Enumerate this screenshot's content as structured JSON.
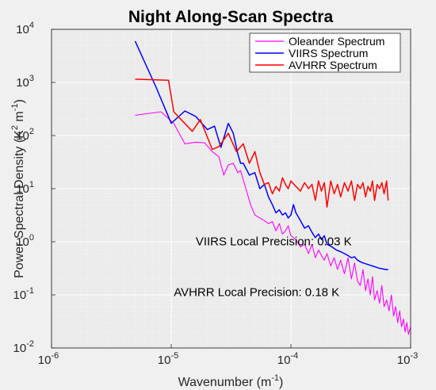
{
  "chart_data": {
    "type": "line",
    "title": "Night Along-Scan Spectra",
    "xlabel": {
      "base": "Wavenumber (m",
      "sup": "-1",
      "tail": ")"
    },
    "ylabel": {
      "p1": "Power Spectral Density (K",
      "s1": "2",
      "p2": " m",
      "s2": "-1",
      "p3": ")"
    },
    "x_scale": "log",
    "y_scale": "log",
    "xlim": [
      1e-06,
      0.001
    ],
    "ylim": [
      0.01,
      10000.0
    ],
    "grid": true,
    "minor_grid": true,
    "legend_position": "top-right",
    "x_ticks": [
      {
        "value": 1e-06,
        "base": "10",
        "exp": "-6"
      },
      {
        "value": 1e-05,
        "base": "10",
        "exp": "-5"
      },
      {
        "value": 0.0001,
        "base": "10",
        "exp": "-4"
      },
      {
        "value": 0.001,
        "base": "10",
        "exp": "-3"
      }
    ],
    "y_ticks": [
      {
        "value": 0.01,
        "base": "10",
        "exp": "-2"
      },
      {
        "value": 0.1,
        "base": "10",
        "exp": "-1"
      },
      {
        "value": 1.0,
        "base": "10",
        "exp": "0"
      },
      {
        "value": 10.0,
        "base": "10",
        "exp": "1"
      },
      {
        "value": 100.0,
        "base": "10",
        "exp": "2"
      },
      {
        "value": 1000.0,
        "base": "10",
        "exp": "3"
      },
      {
        "value": 10000.0,
        "base": "10",
        "exp": "4"
      }
    ],
    "annotations": [
      {
        "text": "VIIRS Local Precision: 0.03 K",
        "x": 1.6e-05,
        "y": 0.85
      },
      {
        "text": "AVHRR Local Precision: 0.18 K",
        "x": 1.05e-05,
        "y": 0.095
      }
    ],
    "series": [
      {
        "name": "Oleander Spectrum",
        "color": "#ff00ff",
        "x": [
          5e-06,
          8.2e-06,
          1.05e-05,
          1.3e-05,
          1.6e-05,
          1.9e-05,
          2.2e-05,
          2.5e-05,
          2.75e-05,
          3e-05,
          3.3e-05,
          3.6e-05,
          3.8e-05,
          4.2e-05,
          4.6e-05,
          5e-05,
          5.5e-05,
          6e-05,
          6.5e-05,
          7e-05,
          7.5e-05,
          8e-05,
          8.5e-05,
          9e-05,
          9.5e-05,
          0.0001,
          0.00011,
          0.00012,
          0.00013,
          0.00014,
          0.00015,
          0.00016,
          0.00017,
          0.00018,
          0.00019,
          0.0002,
          0.000215,
          0.00023,
          0.000245,
          0.00026,
          0.00028,
          0.0003,
          0.00032,
          0.00034,
          0.00036,
          0.00038,
          0.0004,
          0.00042,
          0.00044,
          0.00046,
          0.00048,
          0.0005,
          0.000525,
          0.00055,
          0.000575,
          0.0006,
          0.00063,
          0.00066,
          0.00069,
          0.00072,
          0.00075,
          0.00078,
          0.00081,
          0.00084,
          0.00087,
          0.0009,
          0.00093,
          0.00096,
          0.001
        ],
        "y": [
          240,
          280,
          170,
          70,
          75,
          73,
          50,
          40,
          18,
          28,
          30,
          20,
          22,
          10,
          5,
          3.2,
          2.8,
          2.5,
          2.2,
          2.4,
          1.6,
          2.2,
          1.4,
          1.6,
          2.0,
          1.3,
          1.1,
          0.8,
          0.9,
          0.6,
          0.9,
          0.5,
          0.7,
          0.55,
          0.45,
          0.6,
          0.35,
          0.5,
          0.3,
          0.45,
          0.25,
          0.5,
          0.2,
          0.4,
          0.18,
          0.15,
          0.3,
          0.12,
          0.2,
          0.1,
          0.22,
          0.08,
          0.12,
          0.07,
          0.15,
          0.06,
          0.08,
          0.05,
          0.1,
          0.04,
          0.06,
          0.03,
          0.05,
          0.025,
          0.035,
          0.02,
          0.03,
          0.018,
          0.025
        ]
      },
      {
        "name": "VIIRS Spectrum",
        "color": "#0000ff",
        "x": [
          5e-06,
          7.5e-06,
          1e-05,
          1.3e-05,
          1.6e-05,
          2e-05,
          2.3e-05,
          2.6e-05,
          3e-05,
          3.3e-05,
          3.6e-05,
          3.8e-05,
          4e-05,
          4.5e-05,
          5e-05,
          5.5e-05,
          6e-05,
          6.5e-05,
          7e-05,
          7.5e-05,
          8e-05,
          8.5e-05,
          9e-05,
          9.5e-05,
          0.0001,
          0.000105,
          0.00011,
          0.00012,
          0.00013,
          0.00014,
          0.00015,
          0.00016,
          0.00017,
          0.00018,
          0.00019,
          0.0002,
          0.00022,
          0.00024,
          0.00026,
          0.00028,
          0.0003,
          0.00032,
          0.00034,
          0.00036,
          0.00038,
          0.0004,
          0.00043,
          0.00046,
          0.0005,
          0.00054,
          0.00058,
          0.00062,
          0.00065
        ],
        "y": [
          6000,
          800,
          170,
          290,
          230,
          130,
          150,
          60,
          170,
          110,
          45,
          30,
          30,
          18,
          20,
          10,
          12,
          7,
          5,
          3.5,
          4,
          3.2,
          3.5,
          2.8,
          3.2,
          5,
          3.5,
          2.5,
          1.8,
          2,
          1.5,
          1.2,
          1.4,
          1.1,
          1.3,
          0.9,
          0.8,
          0.7,
          0.65,
          0.6,
          0.55,
          0.5,
          0.52,
          0.45,
          0.42,
          0.4,
          0.38,
          0.36,
          0.34,
          0.32,
          0.31,
          0.3,
          0.3
        ]
      },
      {
        "name": "AVHRR Spectrum",
        "color": "#ff0000",
        "x": [
          5e-06,
          9.5e-06,
          1.05e-05,
          1.5e-05,
          1.75e-05,
          2.2e-05,
          2.5e-05,
          3e-05,
          3.5e-05,
          4e-05,
          4.5e-05,
          5e-05,
          5.5e-05,
          6e-05,
          6.5e-05,
          7e-05,
          7.5e-05,
          8e-05,
          8.5e-05,
          9e-05,
          9.5e-05,
          0.0001,
          0.00011,
          0.00012,
          0.00013,
          0.00014,
          0.00015,
          0.00016,
          0.00017,
          0.00018,
          0.00019,
          0.0002,
          0.000215,
          0.00023,
          0.000245,
          0.00026,
          0.00028,
          0.0003,
          0.00032,
          0.00034,
          0.00036,
          0.00038,
          0.0004,
          0.00042,
          0.00044,
          0.00046,
          0.00048,
          0.0005,
          0.000525,
          0.00055,
          0.000575,
          0.0006,
          0.00063,
          0.00065
        ],
        "y": [
          1150,
          1100,
          280,
          120,
          200,
          55,
          62,
          110,
          50,
          70,
          30,
          50,
          20,
          12,
          13,
          8,
          11,
          9,
          16,
          12,
          10,
          14,
          11,
          9,
          13,
          10,
          12,
          6,
          14,
          9,
          13,
          4.5,
          14,
          8,
          12,
          7,
          13,
          9,
          14,
          6,
          12,
          10,
          13,
          7,
          11,
          9,
          14,
          6,
          12,
          10,
          13,
          8,
          14,
          6
        ]
      }
    ]
  }
}
